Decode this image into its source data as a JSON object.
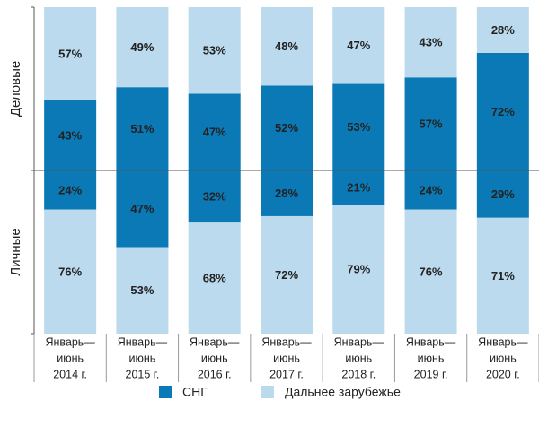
{
  "chart_data": {
    "type": "bar",
    "categories": [
      [
        "Январь—",
        "июнь",
        "2014 г."
      ],
      [
        "Январь—",
        "июнь",
        "2015 г."
      ],
      [
        "Январь—",
        "июнь",
        "2016 г."
      ],
      [
        "Январь—",
        "июнь",
        "2017 г."
      ],
      [
        "Январь—",
        "июнь",
        "2018 г."
      ],
      [
        "Январь—",
        "июнь",
        "2019 г."
      ],
      [
        "Январь—",
        "июнь",
        "2020 г."
      ]
    ],
    "legend": [
      "СНГ",
      "Дальнее зарубежье"
    ],
    "colors": [
      "#0b79b5",
      "#bcdaee"
    ],
    "ylim": [
      0,
      100
    ],
    "panels": [
      {
        "ylabel": "Деловые",
        "direction": "up",
        "series": [
          [
            43,
            51,
            47,
            52,
            53,
            57,
            72
          ],
          [
            57,
            49,
            53,
            48,
            47,
            43,
            28
          ]
        ],
        "value_labels": [
          [
            "43%",
            "51%",
            "47%",
            "52%",
            "53%",
            "57%",
            "72%"
          ],
          [
            "57%",
            "49%",
            "53%",
            "48%",
            "47%",
            "43%",
            "28%"
          ]
        ]
      },
      {
        "ylabel": "Личные",
        "direction": "down",
        "series": [
          [
            24,
            47,
            32,
            28,
            21,
            24,
            29
          ],
          [
            76,
            53,
            68,
            72,
            79,
            76,
            71
          ]
        ],
        "value_labels": [
          [
            "24%",
            "47%",
            "32%",
            "28%",
            "21%",
            "24%",
            "29%"
          ],
          [
            "76%",
            "53%",
            "68%",
            "72%",
            "79%",
            "76%",
            "71%"
          ]
        ]
      }
    ]
  }
}
